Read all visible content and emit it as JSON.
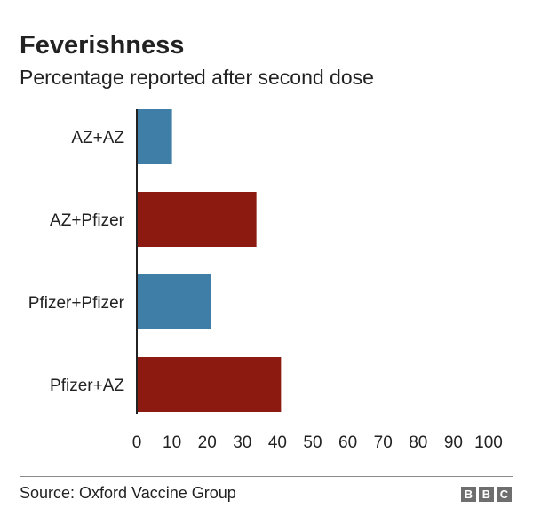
{
  "chart_data": {
    "type": "bar",
    "orientation": "horizontal",
    "title": "Feverishness",
    "subtitle": "Percentage reported after second dose",
    "categories": [
      "AZ+AZ",
      "AZ+Pfizer",
      "Pfizer+Pfizer",
      "Pfizer+AZ"
    ],
    "values": [
      10,
      34,
      21,
      41
    ],
    "colors": [
      "#3f7ea6",
      "#8c1a11",
      "#3f7ea6",
      "#8c1a11"
    ],
    "xlim": [
      0,
      100
    ],
    "xticks": [
      0,
      10,
      20,
      30,
      40,
      50,
      60,
      70,
      80,
      90,
      100
    ],
    "grid": false
  },
  "footer": {
    "source": "Source: Oxford Vaccine Group",
    "logo_letters": [
      "B",
      "B",
      "C"
    ]
  }
}
